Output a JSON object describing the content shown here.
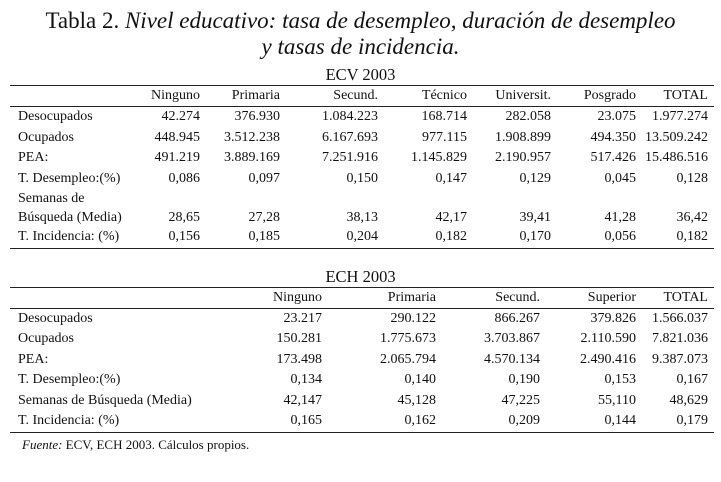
{
  "title": {
    "prefix": "Tabla 2.",
    "italic_line1": "Nivel educativo: tasa de desempleo, duración de desempleo",
    "italic_line2": "y tasas de incidencia."
  },
  "ecv": {
    "heading": "ECV 2003",
    "columns": [
      "Ninguno",
      "Primaria",
      "Secund.",
      "Técnico",
      "Universit.",
      "Posgrado",
      "TOTAL"
    ],
    "rows": [
      {
        "label": "Desocupados",
        "values": [
          "42.274",
          "376.930",
          "1.084.223",
          "168.714",
          "282.058",
          "23.075",
          "1.977.274"
        ]
      },
      {
        "label": "Ocupados",
        "values": [
          "448.945",
          "3.512.238",
          "6.167.693",
          "977.115",
          "1.908.899",
          "494.350",
          "13.509.242"
        ]
      },
      {
        "label": "PEA:",
        "values": [
          "491.219",
          "3.889.169",
          "7.251.916",
          "1.145.829",
          "2.190.957",
          "517.426",
          "15.486.516"
        ]
      },
      {
        "label": "T. Desempleo:(%)",
        "values": [
          "0,086",
          "0,097",
          "0,150",
          "0,147",
          "0,129",
          "0,045",
          "0,128"
        ]
      },
      {
        "label_line1": "Semanas de",
        "label_line2": "Búsqueda (Media)",
        "values": [
          "28,65",
          "27,28",
          "38,13",
          "42,17",
          "39,41",
          "41,28",
          "36,42"
        ]
      },
      {
        "label": "T. Incidencia: (%)",
        "values": [
          "0,156",
          "0,185",
          "0,204",
          "0,182",
          "0,170",
          "0,056",
          "0,182"
        ]
      }
    ]
  },
  "ech": {
    "heading": "ECH 2003",
    "columns": [
      "Ninguno",
      "Primaria",
      "Secund.",
      "Superior",
      "TOTAL"
    ],
    "rows": [
      {
        "label": "Desocupados",
        "values": [
          "23.217",
          "290.122",
          "866.267",
          "379.826",
          "1.566.037"
        ]
      },
      {
        "label": "Ocupados",
        "values": [
          "150.281",
          "1.775.673",
          "3.703.867",
          "2.110.590",
          "7.821.036"
        ]
      },
      {
        "label": "PEA:",
        "values": [
          "173.498",
          "2.065.794",
          "4.570.134",
          "2.490.416",
          "9.387.073"
        ]
      },
      {
        "label": "T. Desempleo:(%)",
        "values": [
          "0,134",
          "0,140",
          "0,190",
          "0,153",
          "0,167"
        ]
      },
      {
        "label": "Semanas de Búsqueda (Media)",
        "values": [
          "42,147",
          "45,128",
          "47,225",
          "55,110",
          "48,629"
        ]
      },
      {
        "label": "T. Incidencia: (%)",
        "values": [
          "0,165",
          "0,162",
          "0,209",
          "0,144",
          "0,179"
        ]
      }
    ]
  },
  "source": {
    "label": "Fuente:",
    "text": "ECV, ECH 2003. Cálculos propios."
  }
}
